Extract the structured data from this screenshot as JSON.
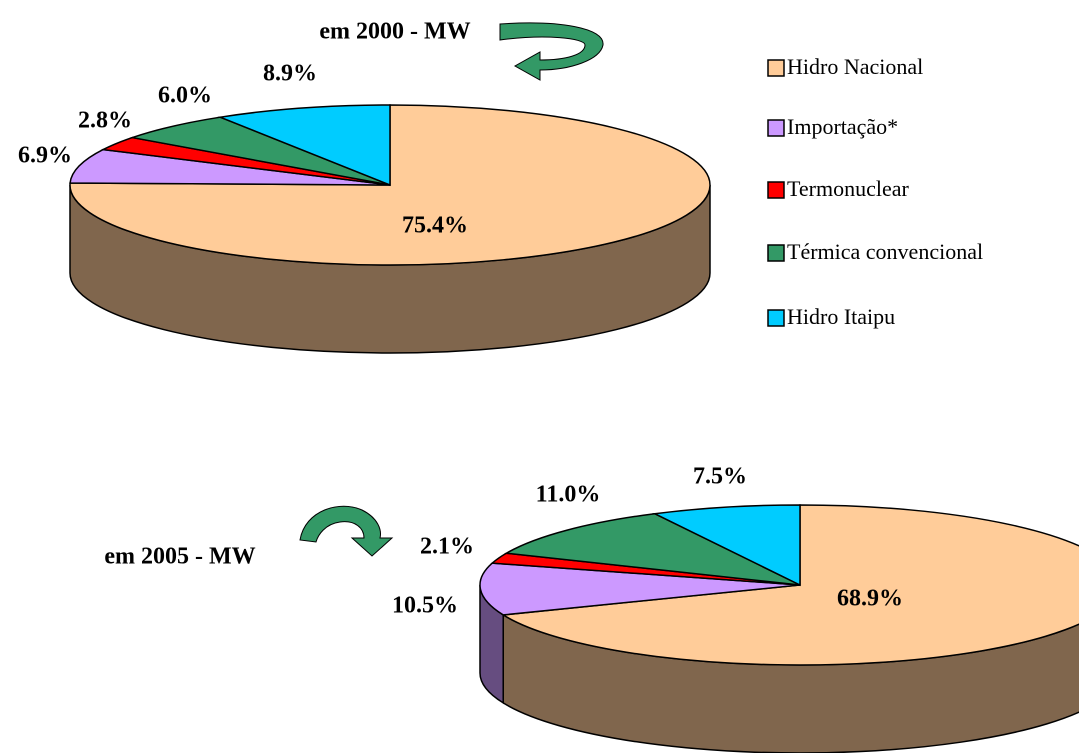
{
  "chart_data": [
    {
      "type": "pie3d",
      "title": "em 2000 - MW",
      "categories": [
        "Hidro Nacional",
        "Importação*",
        "Termonuclear",
        "Térmica convencional",
        "Hidro Itaipu"
      ],
      "colors": [
        "#ffcc99",
        "#cc99ff",
        "#ff0000",
        "#339966",
        "#00ccff"
      ],
      "values": [
        75.4,
        6.9,
        2.8,
        6,
        8.9
      ],
      "value_labels": [
        "75.4%",
        "6.9%",
        "2.8%",
        "6.0%",
        "8.9%"
      ]
    },
    {
      "type": "pie3d",
      "title": "em 2005 - MW",
      "values": [
        68.9,
        10.5,
        2.1,
        11,
        7.5
      ],
      "value_labels": [
        "68.9%",
        "10.5%",
        "2.1%",
        "11.0%",
        "7.5%"
      ]
    }
  ]
}
